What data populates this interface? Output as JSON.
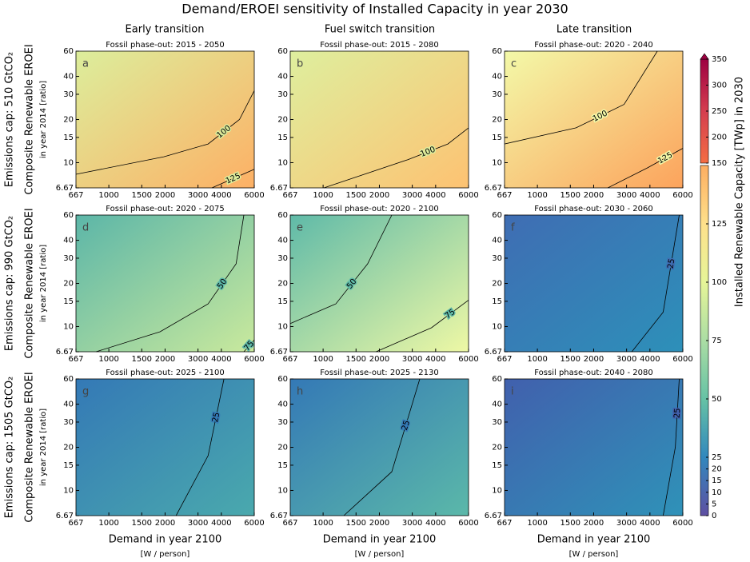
{
  "figure": {
    "title": "Demand/EROEI sensitivity of Installed Capacity in year 2030",
    "column_titles": [
      "Early transition",
      "Fuel switch transition",
      "Late transition"
    ],
    "row_labels": [
      "Emissions cap: 510 GtCO₂",
      "Emissions cap: 990 GtCO₂",
      "Emissions cap: 1505 GtCO₂"
    ],
    "y_label": "Composite Renewable EROEI",
    "y_sublabel": "in year 2014 [ratio]",
    "x_label": "Demand in year 2100",
    "x_sublabel": "[W / person]",
    "colorbar": {
      "label": "Installed Renewable Capacity [TWp] in 2030",
      "lower": {
        "lim": [
          0,
          150
        ],
        "ticks": [
          0,
          5,
          10,
          15,
          20,
          25,
          50,
          75,
          100,
          125
        ],
        "colors": [
          "#5e4fa2",
          "#3288bd",
          "#66c2a5",
          "#abdda4",
          "#e6f598",
          "#fee08b",
          "#fdae61"
        ]
      },
      "upper": {
        "lim": [
          150,
          350
        ],
        "ticks": [
          150,
          200,
          250,
          300,
          350
        ],
        "colors": [
          "#f46d43",
          "#d53e4f",
          "#9e0142"
        ]
      }
    }
  },
  "chart_data": [
    {
      "type": "contour",
      "letter": "a",
      "title": "Fossil phase-out: 2015 - 2050",
      "xscale": "log",
      "yscale": "log",
      "xlim": [
        667,
        6000
      ],
      "ylim": [
        6.67,
        60
      ],
      "xticks": [
        667,
        1000,
        1500,
        2000,
        3000,
        4000,
        6000
      ],
      "yticks": [
        6.67,
        10,
        15,
        20,
        30,
        40,
        60
      ],
      "colors": [
        "#dcee9c",
        "#fdb065"
      ],
      "contours": [
        {
          "level": 100,
          "x": [
            667,
            1970,
            3400,
            5000,
            6000
          ],
          "y": [
            8.3,
            11.0,
            13.5,
            20,
            31.8
          ]
        },
        {
          "level": 125,
          "x": [
            3560,
            6000
          ],
          "y": [
            6.67,
            9.0
          ]
        }
      ]
    },
    {
      "type": "contour",
      "letter": "b",
      "title": "Fossil phase-out: 2015 - 2080",
      "xscale": "log",
      "yscale": "log",
      "xlim": [
        667,
        6000
      ],
      "ylim": [
        6.67,
        60
      ],
      "xticks": [
        667,
        1000,
        1500,
        2000,
        3000,
        4000,
        6000
      ],
      "yticks": [
        6.67,
        10,
        15,
        20,
        30,
        40,
        60
      ],
      "colors": [
        "#deef9e",
        "#fdc272"
      ],
      "contours": [
        {
          "level": 100,
          "x": [
            1010,
            2840,
            4650,
            6000
          ],
          "y": [
            6.67,
            10.5,
            13.5,
            17.5
          ]
        }
      ]
    },
    {
      "type": "contour",
      "letter": "c",
      "title": "Fossil phase-out: 2020 - 2040",
      "xscale": "log",
      "yscale": "log",
      "xlim": [
        667,
        6000
      ],
      "ylim": [
        6.67,
        60
      ],
      "xticks": [
        667,
        1000,
        1500,
        2000,
        3000,
        4000,
        6000
      ],
      "yticks": [
        6.67,
        10,
        15,
        20,
        30,
        40,
        60
      ],
      "colors": [
        "#f3f9a8",
        "#fca35c"
      ],
      "contours": [
        {
          "level": 100,
          "x": [
            667,
            1610,
            2910,
            4380
          ],
          "y": [
            13.5,
            17.5,
            25.5,
            60
          ]
        },
        {
          "level": 125,
          "x": [
            2380,
            3880,
            6000
          ],
          "y": [
            6.67,
            9.2,
            12.6
          ]
        }
      ]
    },
    {
      "type": "contour",
      "letter": "d",
      "title": "Fossil phase-out: 2020 - 2075",
      "xscale": "log",
      "yscale": "log",
      "xlim": [
        667,
        6000
      ],
      "ylim": [
        6.67,
        60
      ],
      "xticks": [
        667,
        1000,
        1500,
        2000,
        3000,
        4000,
        6000
      ],
      "yticks": [
        6.67,
        10,
        15,
        20,
        30,
        40,
        60
      ],
      "colors": [
        "#5cb6a8",
        "#c9e99d"
      ],
      "contours": [
        {
          "level": 50,
          "x": [
            855,
            1880,
            3400,
            4800,
            5280
          ],
          "y": [
            6.67,
            9.2,
            14.4,
            27.4,
            60
          ]
        },
        {
          "level": 75,
          "x": [
            5280,
            6000
          ],
          "y": [
            6.67,
            8.06
          ]
        }
      ]
    },
    {
      "type": "contour",
      "letter": "e",
      "title": "Fossil phase-out: 2020 - 2100",
      "xscale": "log",
      "yscale": "log",
      "xlim": [
        667,
        6000
      ],
      "ylim": [
        6.67,
        60
      ],
      "xticks": [
        667,
        1000,
        1500,
        2000,
        3000,
        4000,
        6000
      ],
      "yticks": [
        6.67,
        10,
        15,
        20,
        30,
        40,
        60
      ],
      "colors": [
        "#5fbaa8",
        "#eef8a5"
      ],
      "contours": [
        {
          "level": 50,
          "x": [
            667,
            1170,
            1730,
            2330
          ],
          "y": [
            10.5,
            14.4,
            27.4,
            60
          ]
        },
        {
          "level": 75,
          "x": [
            1920,
            3800,
            6000
          ],
          "y": [
            6.67,
            9.8,
            15.3
          ]
        }
      ]
    },
    {
      "type": "contour",
      "letter": "f",
      "title": "Fossil phase-out: 2030 - 2060",
      "xscale": "log",
      "yscale": "log",
      "xlim": [
        667,
        6000
      ],
      "ylim": [
        6.67,
        60
      ],
      "xticks": [
        667,
        1000,
        1500,
        2000,
        3000,
        4000,
        6000
      ],
      "yticks": [
        6.67,
        10,
        15,
        20,
        30,
        40,
        60
      ],
      "colors": [
        "#3f6db3",
        "#2d90b9"
      ],
      "contours": [
        {
          "level": 25,
          "x": [
            3200,
            4710,
            5740
          ],
          "y": [
            6.67,
            12.6,
            60
          ]
        }
      ]
    },
    {
      "type": "contour",
      "letter": "g",
      "title": "Fossil phase-out: 2025 - 2100",
      "xscale": "log",
      "yscale": "log",
      "xlim": [
        667,
        6000
      ],
      "ylim": [
        6.67,
        60
      ],
      "xticks": [
        667,
        1000,
        1500,
        2000,
        3000,
        4000,
        6000
      ],
      "yticks": [
        6.67,
        10,
        15,
        20,
        30,
        40,
        60
      ],
      "colors": [
        "#3479b6",
        "#4aa9ad"
      ],
      "contours": [
        {
          "level": 25,
          "x": [
            2290,
            3400,
            4130
          ],
          "y": [
            6.67,
            17.5,
            60
          ]
        }
      ]
    },
    {
      "type": "contour",
      "letter": "h",
      "title": "Fossil phase-out: 2025 - 2130",
      "xscale": "log",
      "yscale": "log",
      "xlim": [
        667,
        6000
      ],
      "ylim": [
        6.67,
        60
      ],
      "xticks": [
        667,
        1000,
        1500,
        2000,
        3000,
        4000,
        6000
      ],
      "yticks": [
        6.67,
        10,
        15,
        20,
        30,
        40,
        60
      ],
      "colors": [
        "#3479b6",
        "#5bb8a9"
      ],
      "contours": [
        {
          "level": 25,
          "x": [
            1290,
            2330,
            3290
          ],
          "y": [
            6.67,
            13.5,
            60
          ]
        }
      ]
    },
    {
      "type": "contour",
      "letter": "i",
      "title": "Fossil phase-out: 2040 - 2080",
      "xscale": "log",
      "yscale": "log",
      "xlim": [
        667,
        6000
      ],
      "ylim": [
        6.67,
        60
      ],
      "xticks": [
        667,
        1000,
        1500,
        2000,
        3000,
        4000,
        6000
      ],
      "yticks": [
        6.67,
        10,
        15,
        20,
        30,
        40,
        60
      ],
      "colors": [
        "#4160ad",
        "#2f92b8"
      ],
      "contours": [
        {
          "level": 25,
          "x": [
            4710,
            5470,
            5740
          ],
          "y": [
            6.67,
            20,
            60
          ]
        }
      ]
    }
  ]
}
